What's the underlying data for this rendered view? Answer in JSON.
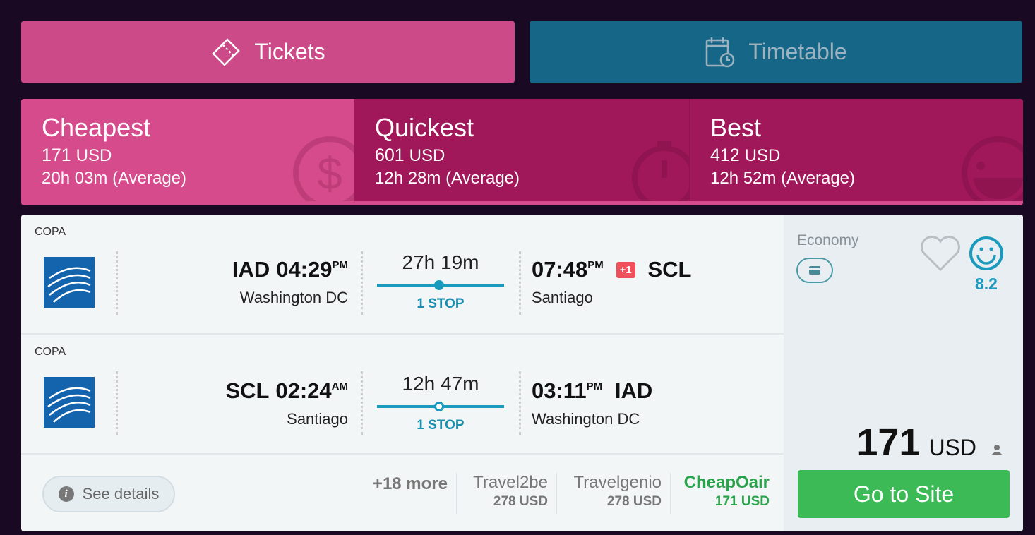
{
  "tabs": {
    "tickets": "Tickets",
    "timetable": "Timetable"
  },
  "sorts": [
    {
      "title": "Cheapest",
      "price": "171",
      "currency": "USD",
      "duration": "20h 03m (Average)"
    },
    {
      "title": "Quickest",
      "price": "601",
      "currency": "USD",
      "duration": "12h 28m (Average)"
    },
    {
      "title": "Best",
      "price": "412",
      "currency": "USD",
      "duration": "12h 52m (Average)"
    }
  ],
  "legs": [
    {
      "airline": "COPA",
      "from_code": "IAD",
      "dep_time": "04:29",
      "dep_ampm": "PM",
      "from_city": "Washington DC",
      "duration": "27h 19m",
      "stops": "1 STOP",
      "arr_time": "07:48",
      "arr_ampm": "PM",
      "day_offset": "+1",
      "to_code": "SCL",
      "to_city": "Santiago"
    },
    {
      "airline": "COPA",
      "from_code": "SCL",
      "dep_time": "02:24",
      "dep_ampm": "AM",
      "from_city": "Santiago",
      "duration": "12h 47m",
      "stops": "1 STOP",
      "arr_time": "03:11",
      "arr_ampm": "PM",
      "to_code": "IAD",
      "to_city": "Washington DC"
    }
  ],
  "cabin": "Economy",
  "rating": "8.2",
  "price": {
    "amount": "171",
    "currency": "USD"
  },
  "go_to_site": "Go to Site",
  "see_details": "See details",
  "more": "+18 more",
  "agents": [
    {
      "name": "Travel2be",
      "price": "278 USD"
    },
    {
      "name": "Travelgenio",
      "price": "278 USD"
    },
    {
      "name": "CheapOair",
      "price": "171 USD"
    }
  ],
  "colors": {
    "pink": "#cd4a88",
    "teal": "#166787",
    "magenta": "#a0185a",
    "green": "#3bba55",
    "blue": "#1a9bbd"
  }
}
